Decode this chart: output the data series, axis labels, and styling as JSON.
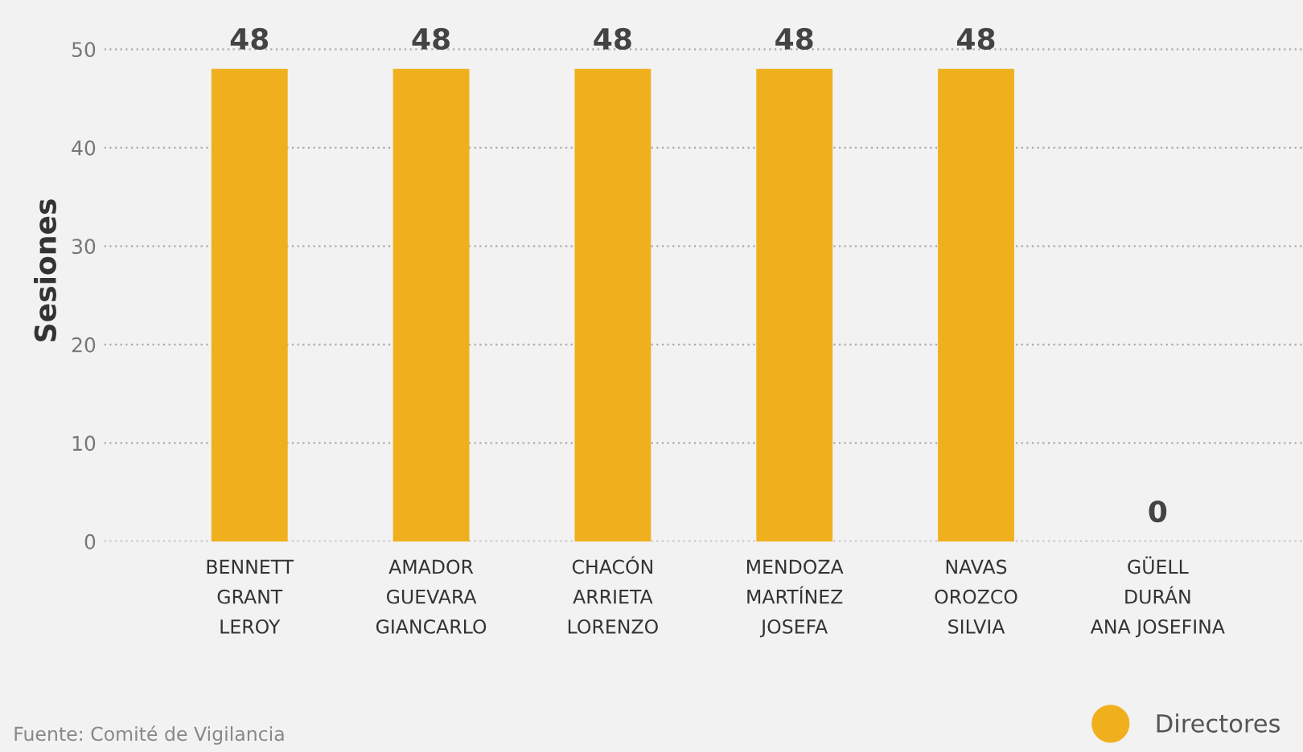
{
  "chart_data": {
    "type": "bar",
    "ylabel": "Sesiones",
    "categories": [
      "BENNETT\nGRANT\nLEROY",
      "AMADOR\nGUEVARA\nGIANCARLO",
      "CHACÓN\nARRIETA\nLORENZO",
      "MENDOZA\nMARTÍNEZ\nJOSEFA",
      "NAVAS\nOROZCO\nSILVIA",
      "GÜELL\nDURÁN\nANA JOSEFINA"
    ],
    "series": [
      {
        "name": "Directores",
        "color": "#f0b01e",
        "values": [
          48,
          48,
          48,
          48,
          48,
          0
        ]
      }
    ],
    "ylim": [
      0,
      55
    ],
    "yticks": [
      0,
      10,
      20,
      30,
      40,
      50
    ],
    "grid": "y",
    "legend": "bottom right",
    "data_labels": true,
    "annotations": [
      "Fuente: Comité de Vigilancia"
    ]
  }
}
